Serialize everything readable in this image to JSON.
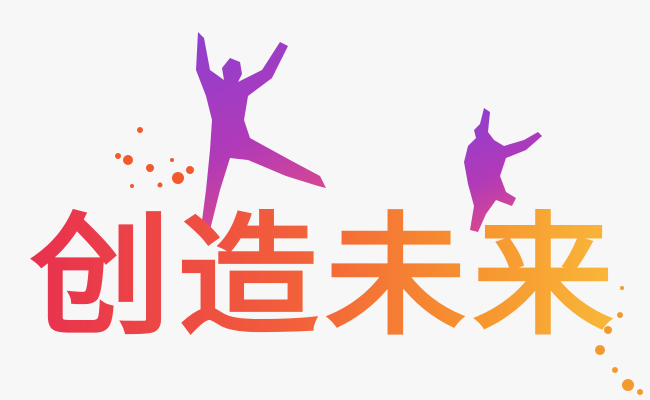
{
  "title": "创造未来"
}
